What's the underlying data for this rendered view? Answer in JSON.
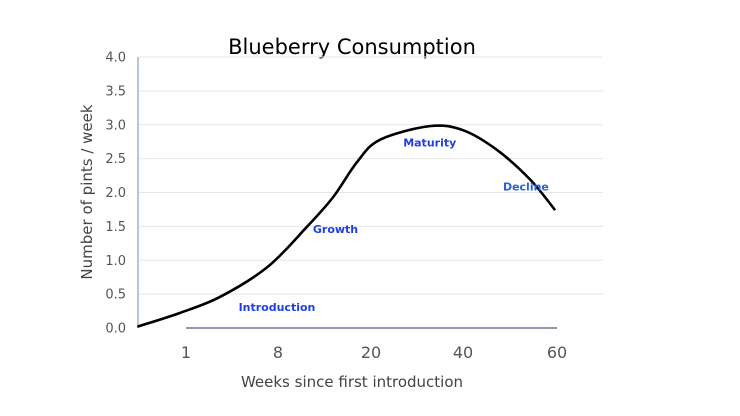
{
  "chart_data": {
    "type": "line",
    "title": "Blueberry Consumption",
    "xlabel": "Weeks since first introduction",
    "ylabel": "Number of  pints / week",
    "ylim": [
      0,
      4
    ],
    "yticks": [
      "0.0",
      "0.5",
      "1.0",
      "1.5",
      "2.0",
      "2.5",
      "3.0",
      "3.5",
      "4.0"
    ],
    "xticks": [
      "1",
      "8",
      "20",
      "40",
      "60"
    ],
    "x_scale": "tick labels equally spaced (non-linear)",
    "grid": true,
    "series": [
      {
        "color": "#000000",
        "x": [
          -2.7,
          0.5,
          3.6,
          7.2,
          11.7,
          15.1,
          18.2,
          22,
          32.8,
          40,
          47.2,
          54.3,
          59.6
        ],
        "y": [
          0.02,
          0.22,
          0.46,
          0.9,
          1.49,
          1.93,
          2.45,
          2.78,
          2.98,
          2.92,
          2.63,
          2.19,
          1.74
        ]
      }
    ],
    "annotations": [
      {
        "text": "Introduction",
        "x": 5,
        "y": 0.25,
        "color": "#1f3fe0"
      },
      {
        "text": "Growth",
        "x": 12.5,
        "y": 1.4,
        "color": "#1f3fe0"
      },
      {
        "text": "Maturity",
        "x": 27,
        "y": 2.68,
        "color": "#1f3fe0"
      },
      {
        "text": "Decline",
        "x": 48.5,
        "y": 2.03,
        "color": "#2a62d8"
      }
    ]
  }
}
